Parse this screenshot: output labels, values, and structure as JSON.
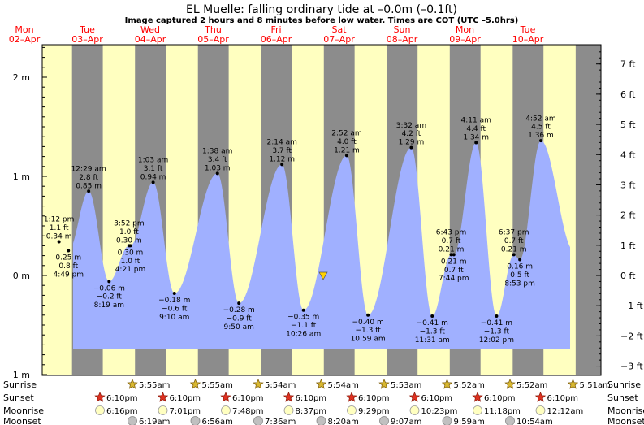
{
  "header": {
    "title": "EL Muelle: falling  ordinary tide at –0.0m (–0.1ft)",
    "subtitle": "Image captured 2 hours and 8 minutes before low water. Times are COT (UTC –5.0hrs)"
  },
  "colors": {
    "day": "#ffffc0",
    "night": "#8c8c8c",
    "water": "#a0b0ff",
    "day_label": "#ff0000"
  },
  "chart_data": {
    "type": "area",
    "title": "EL Muelle: falling  ordinary tide at –0.0m (–0.1ft)",
    "x_unit": "hours since Mon 02-Apr 00:00 COT",
    "ylim_m": [
      -1.0,
      2.35
    ],
    "y_ticks_m": [
      "2 m",
      "1 m",
      "0 m",
      "−1 m"
    ],
    "y_ticks_ft": [
      "7 ft",
      "6 ft",
      "5 ft",
      "4 ft",
      "3 ft",
      "2 ft",
      "1 ft",
      "0 ft",
      "−1 ft",
      "−2 ft",
      "−3 ft"
    ],
    "days": [
      {
        "dow": "Mon",
        "date": "02–Apr"
      },
      {
        "dow": "Tue",
        "date": "03–Apr"
      },
      {
        "dow": "Wed",
        "date": "04–Apr"
      },
      {
        "dow": "Thu",
        "date": "05–Apr"
      },
      {
        "dow": "Fri",
        "date": "06–Apr"
      },
      {
        "dow": "Sat",
        "date": "07–Apr"
      },
      {
        "dow": "Sun",
        "date": "08–Apr"
      },
      {
        "dow": "Mon",
        "date": "09–Apr"
      },
      {
        "dow": "Tue",
        "date": "10–Apr"
      }
    ],
    "tides": [
      {
        "type": "high",
        "lines": [
          "1:12 pm",
          "1.1 ft",
          "0.34 m"
        ],
        "hour": 13.2,
        "m": 0.34
      },
      {
        "type": "low",
        "lines": [
          "0.25 m",
          "0.8 ft",
          "4:49 pm"
        ],
        "hour": 16.8,
        "m": 0.25
      },
      {
        "type": "high",
        "lines": [
          "12:29 am",
          "2.8 ft",
          "0.85 m"
        ],
        "hour": 24.5,
        "m": 0.85
      },
      {
        "type": "low",
        "lines": [
          "−0.06 m",
          "−0.2 ft",
          "8:19 am"
        ],
        "hour": 32.3,
        "m": -0.06
      },
      {
        "type": "high",
        "lines": [
          "3:52 pm",
          "1.0 ft",
          "0.30 m"
        ],
        "hour": 39.9,
        "m": 0.3
      },
      {
        "type": "low",
        "lines": [
          "0.30 m",
          "1.0 ft",
          "4:21 pm"
        ],
        "hour": 40.4,
        "m": 0.3
      },
      {
        "type": "high",
        "lines": [
          "1:03 am",
          "3.1 ft",
          "0.94 m"
        ],
        "hour": 49.1,
        "m": 0.94
      },
      {
        "type": "low",
        "lines": [
          "−0.18 m",
          "−0.6 ft",
          "9:10 am"
        ],
        "hour": 57.2,
        "m": -0.18
      },
      {
        "type": "high",
        "lines": [
          "1:38 am",
          "3.4 ft",
          "1.03 m"
        ],
        "hour": 73.6,
        "m": 1.03
      },
      {
        "type": "low",
        "lines": [
          "−0.28 m",
          "−0.9 ft",
          "9:50 am"
        ],
        "hour": 81.8,
        "m": -0.28
      },
      {
        "type": "high",
        "lines": [
          "2:14 am",
          "3.7 ft",
          "1.12 m"
        ],
        "hour": 98.2,
        "m": 1.12
      },
      {
        "type": "low",
        "lines": [
          "−0.35 m",
          "−1.1 ft",
          "10:26 am"
        ],
        "hour": 106.4,
        "m": -0.35
      },
      {
        "type": "high",
        "lines": [
          "2:52 am",
          "4.0 ft",
          "1.21 m"
        ],
        "hour": 122.9,
        "m": 1.21
      },
      {
        "type": "low",
        "lines": [
          "−0.40 m",
          "−1.3 ft",
          "10:59 am"
        ],
        "hour": 131.0,
        "m": -0.4
      },
      {
        "type": "high",
        "lines": [
          "3:32 am",
          "4.2 ft",
          "1.29 m"
        ],
        "hour": 147.5,
        "m": 1.29
      },
      {
        "type": "low",
        "lines": [
          "−0.41 m",
          "−1.3 ft",
          "11:31 am"
        ],
        "hour": 155.5,
        "m": -0.41
      },
      {
        "type": "high",
        "lines": [
          "6:43 pm",
          "0.7 ft",
          "0.21 m"
        ],
        "hour": 162.7,
        "m": 0.21
      },
      {
        "type": "low",
        "lines": [
          "0.21 m",
          "0.7 ft",
          "7:44 pm"
        ],
        "hour": 163.7,
        "m": 0.21
      },
      {
        "type": "high",
        "lines": [
          "4:11 am",
          "4.4 ft",
          "1.34 m"
        ],
        "hour": 172.2,
        "m": 1.34
      },
      {
        "type": "low",
        "lines": [
          "−0.41 m",
          "−1.3 ft",
          "12:02 pm"
        ],
        "hour": 180.0,
        "m": -0.41
      },
      {
        "type": "high",
        "lines": [
          "6:37 pm",
          "0.7 ft",
          "0.21 m"
        ],
        "hour": 186.6,
        "m": 0.21
      },
      {
        "type": "low",
        "lines": [
          "0.16 m",
          "0.5 ft",
          "8:53 pm"
        ],
        "hour": 188.9,
        "m": 0.16
      },
      {
        "type": "high",
        "lines": [
          "4:52 am",
          "4.5 ft",
          "1.36 m"
        ],
        "hour": 196.9,
        "m": 1.36
      }
    ],
    "current": {
      "label": "falling tide at –0.0m (–0.1ft)",
      "m": 0.0
    },
    "sun_moon_rows": [
      {
        "name": "Sunrise",
        "items": [
          "5:55am",
          "5:55am",
          "5:54am",
          "5:54am",
          "5:53am",
          "5:52am",
          "5:52am",
          "5:51am"
        ]
      },
      {
        "name": "Sunset",
        "items": [
          "6:10pm",
          "6:10pm",
          "6:10pm",
          "6:10pm",
          "6:10pm",
          "6:10pm",
          "6:10pm",
          "6:10pm"
        ]
      },
      {
        "name": "Moonrise",
        "items": [
          "6:16pm",
          "7:01pm",
          "7:48pm",
          "8:37pm",
          "9:29pm",
          "10:23pm",
          "11:18pm",
          "12:12am"
        ]
      },
      {
        "name": "Moonset",
        "items": [
          "6:19am",
          "6:56am",
          "7:36am",
          "8:20am",
          "9:07am",
          "9:59am",
          "10:54am"
        ]
      }
    ]
  }
}
